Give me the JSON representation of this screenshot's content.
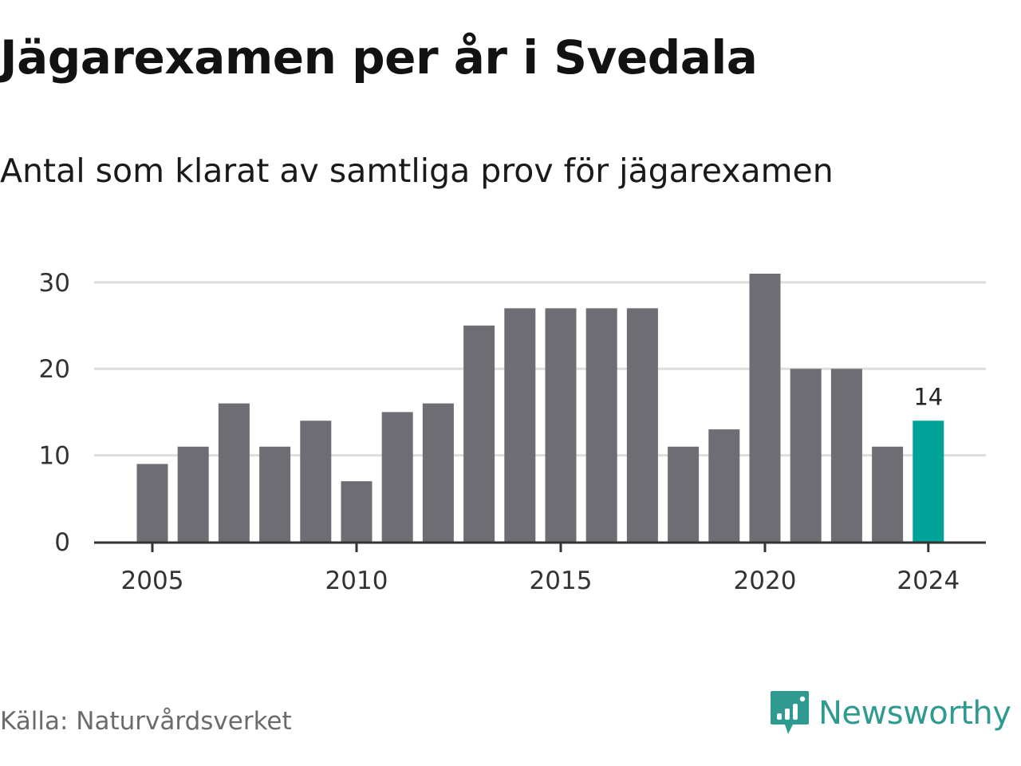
{
  "header": {
    "title": "Jägarexamen per år i Svedala",
    "subtitle": "Antal som klarat av samtliga prov för jägarexamen"
  },
  "footer": {
    "source": "Källa: Naturvårdsverket",
    "brand": "Newsworthy",
    "brand_icon": "chart-bubble-icon"
  },
  "colors": {
    "bar": "#6e6d73",
    "highlight": "#00a397",
    "grid": "#dddddd",
    "axis": "#333333",
    "brand": "#2f9a90"
  },
  "chart_data": {
    "type": "bar",
    "categories": [
      "2005",
      "2006",
      "2007",
      "2008",
      "2009",
      "2010",
      "2011",
      "2012",
      "2013",
      "2014",
      "2015",
      "2016",
      "2017",
      "2018",
      "2019",
      "2020",
      "2021",
      "2022",
      "2023",
      "2024"
    ],
    "values": [
      9,
      11,
      16,
      11,
      14,
      7,
      15,
      16,
      25,
      27,
      27,
      27,
      27,
      11,
      13,
      31,
      20,
      20,
      11,
      14
    ],
    "x_tick_labels": [
      "2005",
      "2010",
      "2015",
      "2020",
      "2024"
    ],
    "y_ticks": [
      0,
      10,
      20,
      30
    ],
    "ylim": [
      0,
      31
    ],
    "highlight_category": "2024",
    "highlight_label": "14",
    "grid": true,
    "legend": false
  }
}
